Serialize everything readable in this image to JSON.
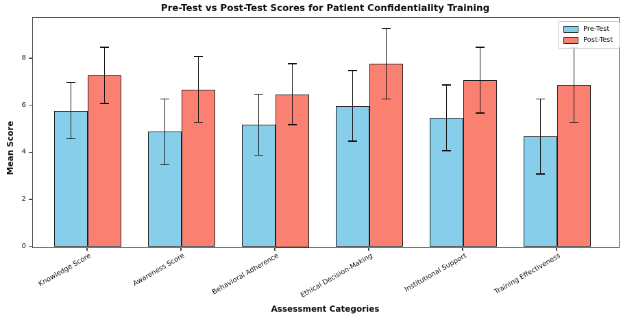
{
  "chart_data": {
    "type": "bar",
    "title": "Pre-Test vs Post-Test Scores for Patient Confidentiality Training",
    "xlabel": "Assessment Categories",
    "ylabel": "Mean Score",
    "categories": [
      "Knowledge Score",
      "Awareness Score",
      "Behavioral Adherence",
      "Ethical Decision-Making",
      "Institutional Support",
      "Training Effectiveness"
    ],
    "series": [
      {
        "name": "Pre-Test",
        "color": "#87CEEB",
        "values": [
          5.8,
          4.9,
          5.2,
          6.0,
          5.5,
          4.7
        ],
        "errors": [
          1.2,
          1.4,
          1.3,
          1.5,
          1.4,
          1.6
        ]
      },
      {
        "name": "Post-Test",
        "color": "#FA8072",
        "values": [
          7.3,
          6.7,
          6.5,
          7.8,
          7.1,
          6.9
        ],
        "errors": [
          1.2,
          1.4,
          1.3,
          1.5,
          1.4,
          1.6
        ]
      }
    ],
    "yticks": [
      0,
      2,
      4,
      6,
      8
    ],
    "ylim": [
      0,
      9.75
    ],
    "grid": false,
    "legend_position": "upper right",
    "bar_edge_color": "#1f1f1f",
    "error_bar_color": "#111111",
    "xtick_rotation_deg": 30
  }
}
